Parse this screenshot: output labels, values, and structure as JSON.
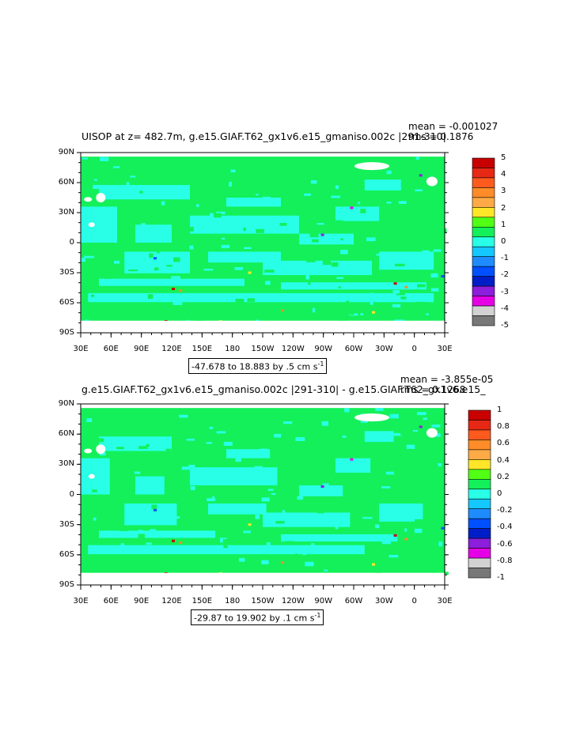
{
  "chart_data": [
    {
      "type": "heatmap",
      "title": "UISOP at z= 482.7m, g.e15.GIAF.T62_gx1v6.e15_gmaniso.002c |291-310|",
      "stats": {
        "mean": "mean = -0.001027",
        "rms": "rms = 0.1876"
      },
      "range_label": "-47.678 to 18.883 by .5 cm s",
      "unit_superscript": "-1",
      "x_ticks": [
        "30E",
        "60E",
        "90E",
        "120E",
        "150E",
        "180",
        "150W",
        "120W",
        "90W",
        "60W",
        "30W",
        "0",
        "30E"
      ],
      "y_ticks": [
        "90N",
        "60N",
        "30N",
        "0",
        "30S",
        "60S",
        "90S"
      ],
      "colorbar_labels": [
        "5",
        "4",
        "3",
        "2",
        "1",
        "0",
        "-1",
        "-2",
        "-3",
        "-4",
        "-5"
      ],
      "colorbar_colors": [
        "#c80000",
        "#e62814",
        "#ff5a1e",
        "#ff8c28",
        "#ffaa46",
        "#ffe628",
        "#50ff14",
        "#14f05a",
        "#28ffe6",
        "#14c8ff",
        "#1e8cff",
        "#0050ff",
        "#001ec8",
        "#8c1edc",
        "#e600e6",
        "#d2d2d2",
        "#787878"
      ],
      "field_colors": {
        "positive": "#14f05a",
        "negative": "#28ffe6"
      }
    },
    {
      "type": "heatmap",
      "title": "g.e15.GIAF.T62_gx1v6.e15_gmaniso.002c |291-310| - g.e15.GIAF.T62_gx1v6.e15_",
      "stats": {
        "mean": "mean = -3.855e-05",
        "rms": "rms = 0.1268"
      },
      "range_label": "-29.87 to 19.902 by .1 cm s",
      "unit_superscript": "-1",
      "x_ticks": [
        "30E",
        "60E",
        "90E",
        "120E",
        "150E",
        "180",
        "150W",
        "120W",
        "90W",
        "60W",
        "30W",
        "0",
        "30E"
      ],
      "y_ticks": [
        "90N",
        "60N",
        "30N",
        "0",
        "30S",
        "60S",
        "90S"
      ],
      "colorbar_labels": [
        "1",
        "0.8",
        "0.6",
        "0.4",
        "0.2",
        "0",
        "-0.2",
        "-0.4",
        "-0.6",
        "-0.8",
        "-1"
      ],
      "colorbar_colors": [
        "#c80000",
        "#e62814",
        "#ff5a1e",
        "#ff8c28",
        "#ffaa46",
        "#ffe628",
        "#50ff14",
        "#14f05a",
        "#28ffe6",
        "#14c8ff",
        "#1e8cff",
        "#0050ff",
        "#001ec8",
        "#8c1edc",
        "#e600e6",
        "#d2d2d2",
        "#787878"
      ],
      "field_colors": {
        "positive": "#14f05a",
        "negative": "#28ffe6"
      }
    }
  ]
}
